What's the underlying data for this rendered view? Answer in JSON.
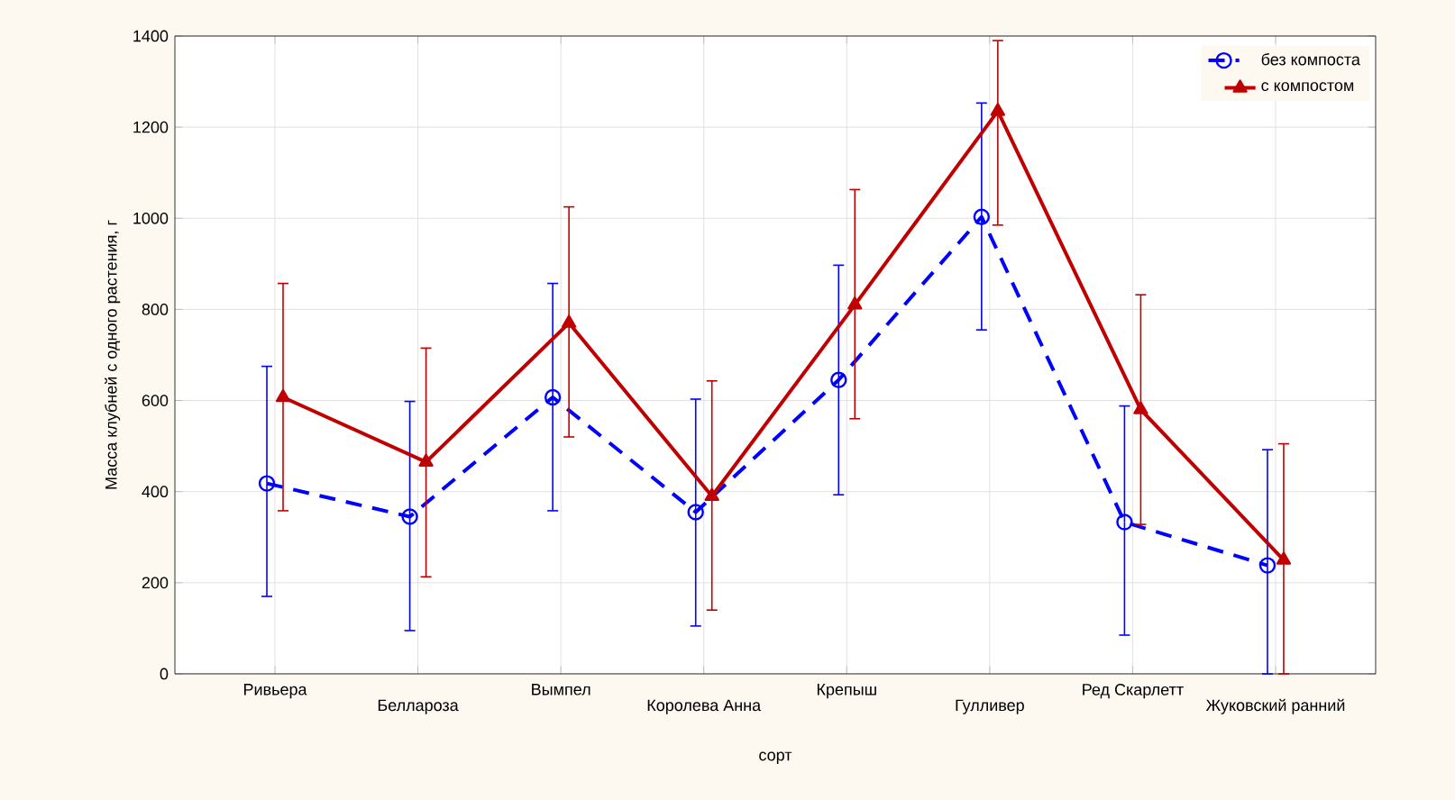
{
  "chart_data": {
    "type": "line",
    "xlabel": "сорт",
    "ylabel": "Масса клубней с одного растения, г",
    "categories": [
      "Ривьера",
      "Беллароза",
      "Вымпел",
      "Королева Анна",
      "Крепыш",
      "Гулливер",
      "Ред Скарлетт",
      "Жуковский ранний"
    ],
    "series": [
      {
        "name": "без компоста",
        "color": "#0000ff",
        "line_style": "dashed",
        "marker": "circle",
        "values": [
          418,
          345,
          607,
          355,
          645,
          1003,
          333,
          238
        ],
        "errors": [
          [
            170,
            675
          ],
          [
            95,
            598
          ],
          [
            358,
            857
          ],
          [
            105,
            603
          ],
          [
            393,
            897
          ],
          [
            755,
            1253
          ],
          [
            85,
            588
          ],
          [
            0,
            492
          ]
        ]
      },
      {
        "name": "с компостом",
        "color": "#c00000",
        "line_style": "solid",
        "marker": "triangle",
        "values": [
          607,
          465,
          770,
          390,
          810,
          1235,
          580,
          250
        ],
        "errors": [
          [
            358,
            857
          ],
          [
            213,
            715
          ],
          [
            520,
            1025
          ],
          [
            140,
            643
          ],
          [
            560,
            1063
          ],
          [
            985,
            1390
          ],
          [
            328,
            832
          ],
          [
            0,
            505
          ]
        ]
      }
    ],
    "ylim": [
      0,
      1400
    ],
    "yticks": [
      0,
      200,
      400,
      600,
      800,
      1000,
      1200,
      1400
    ],
    "grid": true,
    "legend": "top right"
  }
}
